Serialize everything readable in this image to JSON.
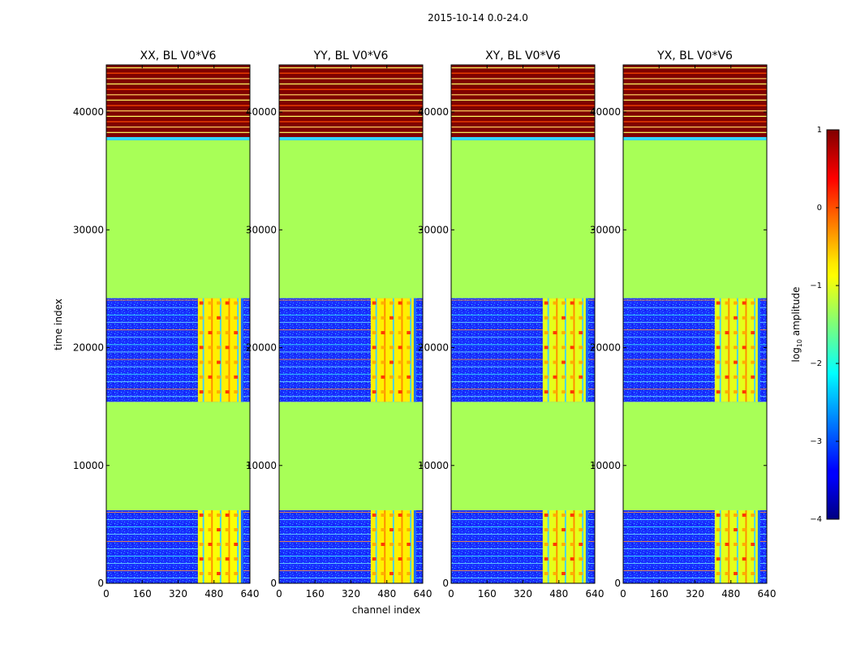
{
  "figure": {
    "suptitle": "2015-10-14 0.0-24.0",
    "xlabel": "channel index",
    "ylabel": "time index"
  },
  "colorbar": {
    "label_prefix": "log",
    "label_sub": "10",
    "label_suffix": " amplitude",
    "ticks": [
      1,
      0,
      -1,
      -2,
      -3,
      -4
    ],
    "tick_labels": [
      "1",
      "0",
      "−1",
      "−2",
      "−3",
      "−4"
    ],
    "range": [
      -4,
      1
    ],
    "colormap": "jet"
  },
  "chart_data": [
    {
      "type": "heatmap",
      "title": "XX, BL V0*V6",
      "xlabel": "channel index",
      "ylabel": "time index",
      "xlim": [
        0,
        640
      ],
      "ylim": [
        0,
        44000
      ],
      "xticks": [
        0,
        160,
        320,
        480,
        640
      ],
      "yticks": [
        0,
        10000,
        20000,
        30000,
        40000
      ],
      "bands": [
        {
          "t": [
            0,
            6200
          ],
          "level": "low",
          "value": -2.9,
          "hot_channels": [
            408,
            600
          ],
          "hot_value": -0.9
        },
        {
          "t": [
            6200,
            15400
          ],
          "level": "flat",
          "value": -1.3
        },
        {
          "t": [
            15400,
            24200
          ],
          "level": "low",
          "value": -2.9,
          "hot_channels": [
            408,
            600
          ],
          "hot_value": -0.8
        },
        {
          "t": [
            24200,
            37600
          ],
          "level": "flat",
          "value": -1.3
        },
        {
          "t": [
            37600,
            44000
          ],
          "level": "saturated",
          "value": 1.0
        }
      ]
    },
    {
      "type": "heatmap",
      "title": "YY, BL V0*V6",
      "xlabel": "channel index",
      "ylabel": "time index",
      "xlim": [
        0,
        640
      ],
      "ylim": [
        0,
        44000
      ],
      "xticks": [
        0,
        160,
        320,
        480,
        640
      ],
      "yticks": [
        0,
        10000,
        20000,
        30000,
        40000
      ],
      "bands": [
        {
          "t": [
            0,
            6200
          ],
          "level": "low",
          "value": -2.8,
          "hot_channels": [
            408,
            600
          ],
          "hot_value": -0.8
        },
        {
          "t": [
            6200,
            15400
          ],
          "level": "flat",
          "value": -1.3
        },
        {
          "t": [
            15400,
            24200
          ],
          "level": "low",
          "value": -2.9,
          "hot_channels": [
            408,
            600
          ],
          "hot_value": -0.8
        },
        {
          "t": [
            24200,
            37600
          ],
          "level": "flat",
          "value": -1.3
        },
        {
          "t": [
            37600,
            44000
          ],
          "level": "saturated",
          "value": 1.0
        }
      ]
    },
    {
      "type": "heatmap",
      "title": "XY, BL V0*V6",
      "xlabel": "channel index",
      "ylabel": "time index",
      "xlim": [
        0,
        640
      ],
      "ylim": [
        0,
        44000
      ],
      "xticks": [
        0,
        160,
        320,
        480,
        640
      ],
      "yticks": [
        0,
        10000,
        20000,
        30000,
        40000
      ],
      "bands": [
        {
          "t": [
            0,
            6200
          ],
          "level": "low",
          "value": -3.0,
          "hot_channels": [
            408,
            600
          ],
          "hot_value": -1.0
        },
        {
          "t": [
            6200,
            15400
          ],
          "level": "flat",
          "value": -1.3
        },
        {
          "t": [
            15400,
            24200
          ],
          "level": "low",
          "value": -3.1,
          "hot_channels": [
            408,
            600
          ],
          "hot_value": -1.0
        },
        {
          "t": [
            24200,
            37600
          ],
          "level": "flat",
          "value": -1.3
        },
        {
          "t": [
            37600,
            44000
          ],
          "level": "saturated",
          "value": 1.0
        }
      ]
    },
    {
      "type": "heatmap",
      "title": "YX, BL V0*V6",
      "xlabel": "channel index",
      "ylabel": "time index",
      "xlim": [
        0,
        640
      ],
      "ylim": [
        0,
        44000
      ],
      "xticks": [
        0,
        160,
        320,
        480,
        640
      ],
      "yticks": [
        0,
        10000,
        20000,
        30000,
        40000
      ],
      "bands": [
        {
          "t": [
            0,
            6200
          ],
          "level": "low",
          "value": -3.0,
          "hot_channels": [
            408,
            600
          ],
          "hot_value": -1.0
        },
        {
          "t": [
            6200,
            15400
          ],
          "level": "flat",
          "value": -1.3
        },
        {
          "t": [
            15400,
            24200
          ],
          "level": "low",
          "value": -3.1,
          "hot_channels": [
            408,
            600
          ],
          "hot_value": -1.0
        },
        {
          "t": [
            24200,
            37600
          ],
          "level": "flat",
          "value": -1.3
        },
        {
          "t": [
            37600,
            44000
          ],
          "level": "saturated",
          "value": 1.0
        }
      ]
    }
  ]
}
